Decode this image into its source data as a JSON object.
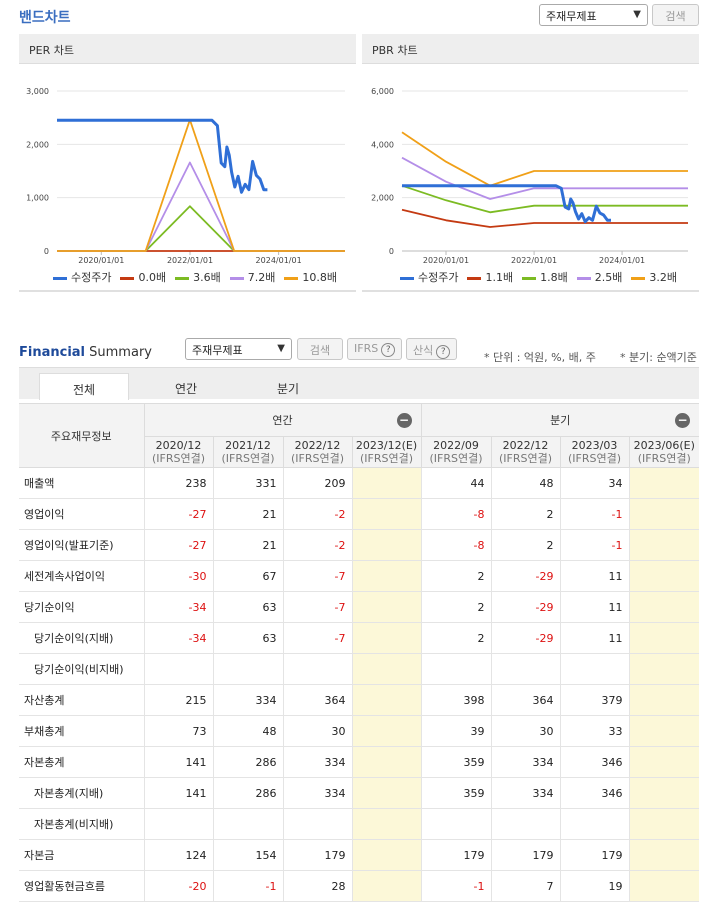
{
  "band_chart": {
    "title": "밴드차트",
    "select_label": "주재무제표",
    "search_label": "검색"
  },
  "per_chart": {
    "title": "PER 차트",
    "y_ticks": [
      "3,000",
      "2,000",
      "1,000",
      "0"
    ],
    "x_ticks": [
      "2020/01/01",
      "2022/01/01",
      "2024/01/01"
    ],
    "legend": [
      {
        "name": "수정주가",
        "color": "#2f6fd6"
      },
      {
        "name": "0.0배",
        "color": "#c43a12"
      },
      {
        "name": "3.6배",
        "color": "#7cbb23"
      },
      {
        "name": "7.2배",
        "color": "#b48ee8"
      },
      {
        "name": "10.8배",
        "color": "#f0a018"
      }
    ]
  },
  "pbr_chart": {
    "title": "PBR 차트",
    "y_ticks": [
      "6,000",
      "4,000",
      "2,000",
      "0"
    ],
    "x_ticks": [
      "2020/01/01",
      "2022/01/01",
      "2024/01/01"
    ],
    "legend": [
      {
        "name": "수정주가",
        "color": "#2f6fd6"
      },
      {
        "name": "1.1배",
        "color": "#c43a12"
      },
      {
        "name": "1.8배",
        "color": "#7cbb23"
      },
      {
        "name": "2.5배",
        "color": "#b48ee8"
      },
      {
        "name": "3.2배",
        "color": "#f0a018"
      }
    ]
  },
  "chart_data": [
    {
      "type": "line",
      "title": "PER 차트",
      "ylim": [
        0,
        3000
      ],
      "x_range": [
        "2019/01/01",
        "2025/07/01"
      ],
      "series": [
        {
          "name": "수정주가",
          "x": [
            "2019/01/01",
            "2022/07/01",
            "2022/08/15",
            "2022/09/15",
            "2022/10/15",
            "2022/11/01",
            "2022/11/20",
            "2022/12/10",
            "2023/01/05",
            "2023/02/01",
            "2023/03/01",
            "2023/04/01",
            "2023/05/01",
            "2023/06/01",
            "2023/07/01",
            "2023/08/01",
            "2023/09/01",
            "2023/10/01"
          ],
          "y": [
            2450,
            2450,
            2350,
            1650,
            1580,
            1950,
            1800,
            1480,
            1200,
            1400,
            1100,
            1250,
            1150,
            1680,
            1420,
            1350,
            1150,
            1150
          ]
        },
        {
          "name": "0.0배",
          "x": [
            "2019/01/01",
            "2025/07/01"
          ],
          "y": [
            0,
            0
          ]
        },
        {
          "name": "3.6배",
          "x": [
            "2019/01/01",
            "2020/12/31",
            "2021/12/31",
            "2022/12/31",
            "2025/07/01"
          ],
          "y": [
            0,
            0,
            840,
            0,
            0
          ]
        },
        {
          "name": "7.2배",
          "x": [
            "2019/01/01",
            "2020/12/31",
            "2021/12/31",
            "2022/12/31",
            "2025/07/01"
          ],
          "y": [
            0,
            0,
            1660,
            0,
            0
          ]
        },
        {
          "name": "10.8배",
          "x": [
            "2019/01/01",
            "2020/12/31",
            "2021/12/31",
            "2022/12/31",
            "2025/07/01"
          ],
          "y": [
            0,
            0,
            2460,
            0,
            0
          ]
        }
      ]
    },
    {
      "type": "line",
      "title": "PBR 차트",
      "ylim": [
        0,
        6000
      ],
      "x_range": [
        "2019/01/01",
        "2025/07/01"
      ],
      "series": [
        {
          "name": "수정주가",
          "x": [
            "2019/01/01",
            "2022/07/01",
            "2022/08/15",
            "2022/09/15",
            "2022/10/15",
            "2022/11/01",
            "2022/11/20",
            "2022/12/10",
            "2023/01/05",
            "2023/02/01",
            "2023/03/01",
            "2023/04/01",
            "2023/05/01",
            "2023/06/01",
            "2023/07/01",
            "2023/08/01",
            "2023/09/01",
            "2023/10/01"
          ],
          "y": [
            2450,
            2450,
            2350,
            1650,
            1580,
            1950,
            1800,
            1480,
            1200,
            1400,
            1100,
            1250,
            1150,
            1680,
            1420,
            1350,
            1150,
            1150
          ]
        },
        {
          "name": "1.1배",
          "x": [
            "2019/01/01",
            "2020/01/01",
            "2021/01/01",
            "2022/01/01",
            "2025/07/01"
          ],
          "y": [
            1550,
            1150,
            900,
            1050,
            1050
          ]
        },
        {
          "name": "1.8배",
          "x": [
            "2019/01/01",
            "2020/01/01",
            "2021/01/01",
            "2022/01/01",
            "2025/07/01"
          ],
          "y": [
            2450,
            1900,
            1450,
            1700,
            1700
          ]
        },
        {
          "name": "2.5배",
          "x": [
            "2019/01/01",
            "2020/01/01",
            "2021/01/01",
            "2022/01/01",
            "2025/07/01"
          ],
          "y": [
            3500,
            2600,
            1950,
            2350,
            2350
          ]
        },
        {
          "name": "3.2배",
          "x": [
            "2019/01/01",
            "2020/01/01",
            "2021/01/01",
            "2022/01/01",
            "2025/07/01"
          ],
          "y": [
            4450,
            3350,
            2450,
            3000,
            3000
          ]
        }
      ]
    }
  ],
  "financial_summary": {
    "title_main": "Financial",
    "title_sub": "Summary",
    "select_label": "주재무제표",
    "search_label": "검색",
    "ifrs_label": "IFRS",
    "formula_label": "산식",
    "unit_note": "* 단위 : 억원, %, 배, 주",
    "quarter_note": "* 분기: 순액기준",
    "tabs": [
      "전체",
      "연간",
      "분기"
    ],
    "row_header": "주요재무정보",
    "group_annual": "연간",
    "group_quarter": "분기",
    "periods": [
      {
        "p": "2020/12",
        "s": "(IFRS연결)"
      },
      {
        "p": "2021/12",
        "s": "(IFRS연결)"
      },
      {
        "p": "2022/12",
        "s": "(IFRS연결)"
      },
      {
        "p": "2023/12(E)",
        "s": "(IFRS연결)"
      },
      {
        "p": "2022/09",
        "s": "(IFRS연결)"
      },
      {
        "p": "2022/12",
        "s": "(IFRS연결)"
      },
      {
        "p": "2023/03",
        "s": "(IFRS연결)"
      },
      {
        "p": "2023/06(E)",
        "s": "(IFRS연결)"
      }
    ],
    "rows": [
      {
        "label": "매출액",
        "sub": false,
        "values": [
          "238",
          "331",
          "209",
          "",
          "44",
          "48",
          "34",
          ""
        ]
      },
      {
        "label": "영업이익",
        "sub": false,
        "values": [
          "-27",
          "21",
          "-2",
          "",
          "-8",
          "2",
          "-1",
          ""
        ]
      },
      {
        "label": "영업이익(발표기준)",
        "sub": false,
        "values": [
          "-27",
          "21",
          "-2",
          "",
          "-8",
          "2",
          "-1",
          ""
        ]
      },
      {
        "label": "세전계속사업이익",
        "sub": false,
        "values": [
          "-30",
          "67",
          "-7",
          "",
          "2",
          "-29",
          "11",
          ""
        ]
      },
      {
        "label": "당기순이익",
        "sub": false,
        "values": [
          "-34",
          "63",
          "-7",
          "",
          "2",
          "-29",
          "11",
          ""
        ]
      },
      {
        "label": "당기순이익(지배)",
        "sub": true,
        "values": [
          "-34",
          "63",
          "-7",
          "",
          "2",
          "-29",
          "11",
          ""
        ]
      },
      {
        "label": "당기순이익(비지배)",
        "sub": true,
        "values": [
          "",
          "",
          "",
          "",
          "",
          "",
          "",
          ""
        ]
      },
      {
        "label": "자산총계",
        "sub": false,
        "values": [
          "215",
          "334",
          "364",
          "",
          "398",
          "364",
          "379",
          ""
        ]
      },
      {
        "label": "부채총계",
        "sub": false,
        "values": [
          "73",
          "48",
          "30",
          "",
          "39",
          "30",
          "33",
          ""
        ]
      },
      {
        "label": "자본총계",
        "sub": false,
        "values": [
          "141",
          "286",
          "334",
          "",
          "359",
          "334",
          "346",
          ""
        ]
      },
      {
        "label": "자본총계(지배)",
        "sub": true,
        "values": [
          "141",
          "286",
          "334",
          "",
          "359",
          "334",
          "346",
          ""
        ]
      },
      {
        "label": "자본총계(비지배)",
        "sub": true,
        "values": [
          "",
          "",
          "",
          "",
          "",
          "",
          "",
          ""
        ]
      },
      {
        "label": "자본금",
        "sub": false,
        "values": [
          "124",
          "154",
          "179",
          "",
          "179",
          "179",
          "179",
          ""
        ]
      },
      {
        "label": "영업활동현금흐름",
        "sub": false,
        "values": [
          "-20",
          "-1",
          "28",
          "",
          "-1",
          "7",
          "19",
          ""
        ]
      }
    ]
  }
}
